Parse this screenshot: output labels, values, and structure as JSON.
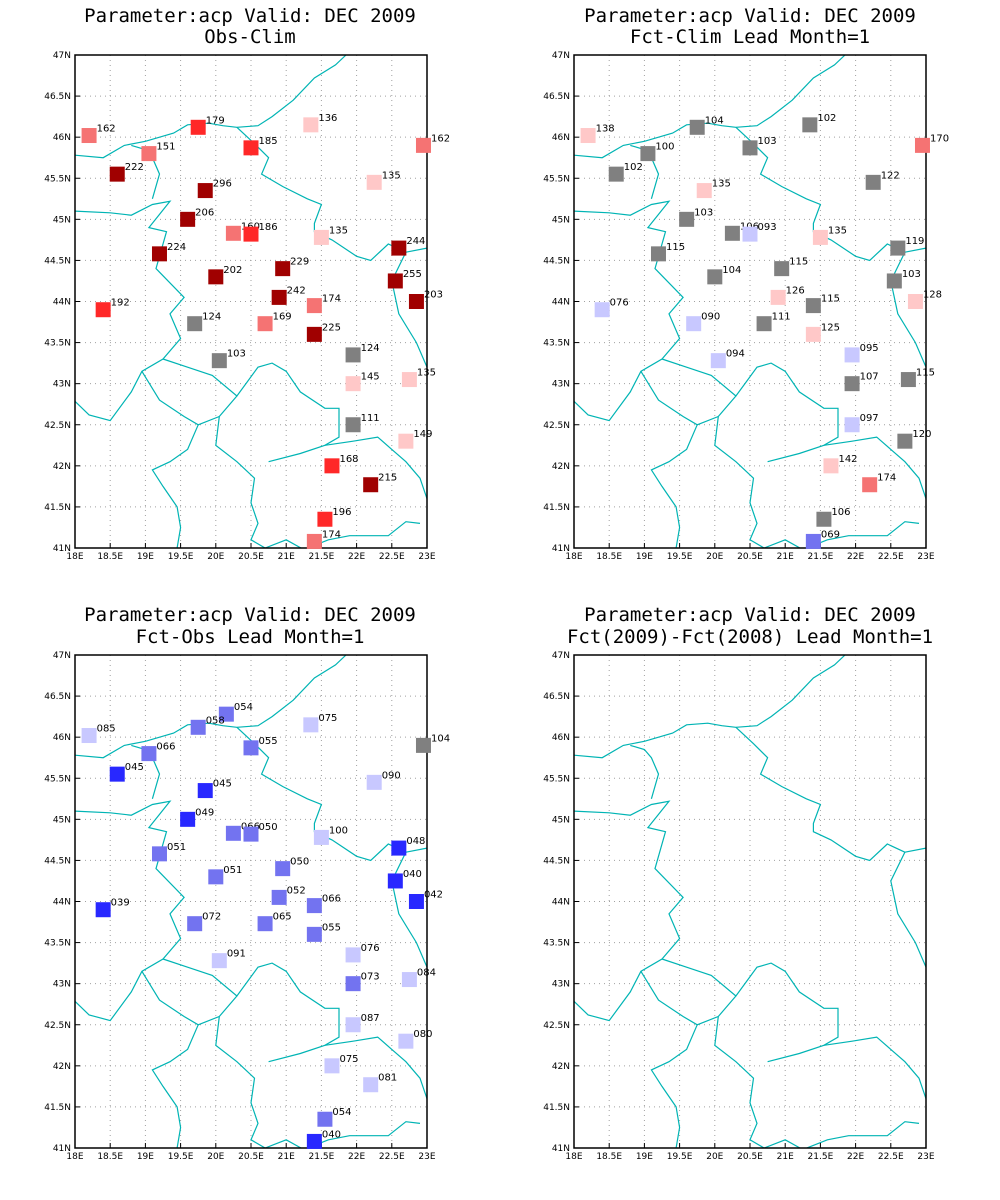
{
  "colors": {
    "coast": "#00b4b4",
    "grid": "#a0a0a0",
    "frame": "#000000",
    "neutral": "#808080",
    "darkred": "#a00000",
    "red": "#ff2828",
    "salmon": "#f57373",
    "pink": "#ffc8c8",
    "lightblue": "#c8c8ff",
    "medblue": "#7373f0",
    "blue": "#2828ff"
  },
  "axes": {
    "lon_range": [
      18,
      23
    ],
    "lat_range": [
      41,
      47
    ],
    "lon_ticks": [
      "18E",
      "18.5E",
      "19E",
      "19.5E",
      "20E",
      "20.5E",
      "21E",
      "21.5E",
      "22E",
      "22.5E",
      "23E"
    ],
    "lat_ticks": [
      "41N",
      "41.5N",
      "42N",
      "42.5N",
      "43N",
      "43.5N",
      "44N",
      "44.5N",
      "45N",
      "45.5N",
      "46N",
      "46.5N",
      "47N"
    ]
  },
  "panels": [
    {
      "title1": "Parameter:acp Valid: DEC 2009",
      "title2": "Obs-Clim",
      "stations": [
        {
          "lon": 18.2,
          "lat": 46.02,
          "label": "162",
          "c": "salmon"
        },
        {
          "lon": 19.05,
          "lat": 45.8,
          "label": "151",
          "c": "salmon"
        },
        {
          "lon": 19.75,
          "lat": 46.12,
          "label": "179",
          "c": "red"
        },
        {
          "lon": 20.5,
          "lat": 45.87,
          "label": "185",
          "c": "red"
        },
        {
          "lon": 21.35,
          "lat": 46.15,
          "label": "136",
          "c": "pink"
        },
        {
          "lon": 22.95,
          "lat": 45.9,
          "label": "162",
          "c": "salmon"
        },
        {
          "lon": 18.6,
          "lat": 45.55,
          "label": "222",
          "c": "darkred"
        },
        {
          "lon": 19.85,
          "lat": 45.35,
          "label": "296",
          "c": "darkred"
        },
        {
          "lon": 22.25,
          "lat": 45.45,
          "label": "135",
          "c": "pink"
        },
        {
          "lon": 19.6,
          "lat": 45.0,
          "label": "206",
          "c": "darkred"
        },
        {
          "lon": 20.25,
          "lat": 44.83,
          "label": "160",
          "c": "salmon"
        },
        {
          "lon": 20.5,
          "lat": 44.82,
          "label": "186",
          "c": "red"
        },
        {
          "lon": 21.5,
          "lat": 44.78,
          "label": "135",
          "c": "pink"
        },
        {
          "lon": 22.6,
          "lat": 44.65,
          "label": "244",
          "c": "darkred"
        },
        {
          "lon": 19.2,
          "lat": 44.58,
          "label": "224",
          "c": "darkred"
        },
        {
          "lon": 20.0,
          "lat": 44.3,
          "label": "202",
          "c": "darkred"
        },
        {
          "lon": 20.95,
          "lat": 44.4,
          "label": "229",
          "c": "darkred"
        },
        {
          "lon": 22.55,
          "lat": 44.25,
          "label": "255",
          "c": "darkred"
        },
        {
          "lon": 20.9,
          "lat": 44.05,
          "label": "242",
          "c": "darkred"
        },
        {
          "lon": 21.4,
          "lat": 43.95,
          "label": "174",
          "c": "salmon"
        },
        {
          "lon": 22.85,
          "lat": 44.0,
          "label": "203",
          "c": "darkred"
        },
        {
          "lon": 18.4,
          "lat": 43.9,
          "label": "192",
          "c": "red"
        },
        {
          "lon": 19.7,
          "lat": 43.73,
          "label": "124",
          "c": "neutral"
        },
        {
          "lon": 20.7,
          "lat": 43.73,
          "label": "169",
          "c": "salmon"
        },
        {
          "lon": 21.4,
          "lat": 43.6,
          "label": "225",
          "c": "darkred"
        },
        {
          "lon": 21.95,
          "lat": 43.35,
          "label": "124",
          "c": "neutral"
        },
        {
          "lon": 20.05,
          "lat": 43.28,
          "label": "103",
          "c": "neutral"
        },
        {
          "lon": 21.95,
          "lat": 43.0,
          "label": "145",
          "c": "pink"
        },
        {
          "lon": 22.75,
          "lat": 43.05,
          "label": "135",
          "c": "pink"
        },
        {
          "lon": 21.95,
          "lat": 42.5,
          "label": "111",
          "c": "neutral"
        },
        {
          "lon": 22.7,
          "lat": 42.3,
          "label": "149",
          "c": "pink"
        },
        {
          "lon": 21.65,
          "lat": 42.0,
          "label": "168",
          "c": "red"
        },
        {
          "lon": 22.2,
          "lat": 41.77,
          "label": "215",
          "c": "darkred"
        },
        {
          "lon": 21.55,
          "lat": 41.35,
          "label": "196",
          "c": "red"
        },
        {
          "lon": 21.4,
          "lat": 41.08,
          "label": "174",
          "c": "salmon"
        }
      ]
    },
    {
      "title1": "Parameter:acp Valid: DEC 2009",
      "title2": "Fct-Clim Lead Month=1",
      "stations": [
        {
          "lon": 18.2,
          "lat": 46.02,
          "label": "138",
          "c": "pink"
        },
        {
          "lon": 19.05,
          "lat": 45.8,
          "label": "100",
          "c": "neutral"
        },
        {
          "lon": 19.75,
          "lat": 46.12,
          "label": "104",
          "c": "neutral"
        },
        {
          "lon": 20.5,
          "lat": 45.87,
          "label": "103",
          "c": "neutral"
        },
        {
          "lon": 21.35,
          "lat": 46.15,
          "label": "102",
          "c": "neutral"
        },
        {
          "lon": 22.95,
          "lat": 45.9,
          "label": "170",
          "c": "salmon"
        },
        {
          "lon": 18.6,
          "lat": 45.55,
          "label": "102",
          "c": "neutral"
        },
        {
          "lon": 19.85,
          "lat": 45.35,
          "label": "135",
          "c": "pink"
        },
        {
          "lon": 22.25,
          "lat": 45.45,
          "label": "122",
          "c": "neutral"
        },
        {
          "lon": 19.6,
          "lat": 45.0,
          "label": "103",
          "c": "neutral"
        },
        {
          "lon": 20.25,
          "lat": 44.83,
          "label": "106",
          "c": "neutral"
        },
        {
          "lon": 20.5,
          "lat": 44.82,
          "label": "093",
          "c": "lightblue"
        },
        {
          "lon": 21.5,
          "lat": 44.78,
          "label": "135",
          "c": "pink"
        },
        {
          "lon": 22.6,
          "lat": 44.65,
          "label": "119",
          "c": "neutral"
        },
        {
          "lon": 19.2,
          "lat": 44.58,
          "label": "115",
          "c": "neutral"
        },
        {
          "lon": 20.0,
          "lat": 44.3,
          "label": "104",
          "c": "neutral"
        },
        {
          "lon": 20.95,
          "lat": 44.4,
          "label": "115",
          "c": "neutral"
        },
        {
          "lon": 22.55,
          "lat": 44.25,
          "label": "103",
          "c": "neutral"
        },
        {
          "lon": 20.9,
          "lat": 44.05,
          "label": "126",
          "c": "pink"
        },
        {
          "lon": 21.4,
          "lat": 43.95,
          "label": "115",
          "c": "neutral"
        },
        {
          "lon": 22.85,
          "lat": 44.0,
          "label": "128",
          "c": "pink"
        },
        {
          "lon": 18.4,
          "lat": 43.9,
          "label": "076",
          "c": "lightblue"
        },
        {
          "lon": 19.7,
          "lat": 43.73,
          "label": "090",
          "c": "lightblue"
        },
        {
          "lon": 20.7,
          "lat": 43.73,
          "label": "111",
          "c": "neutral"
        },
        {
          "lon": 21.4,
          "lat": 43.6,
          "label": "125",
          "c": "pink"
        },
        {
          "lon": 21.95,
          "lat": 43.35,
          "label": "095",
          "c": "lightblue"
        },
        {
          "lon": 20.05,
          "lat": 43.28,
          "label": "094",
          "c": "lightblue"
        },
        {
          "lon": 21.95,
          "lat": 43.0,
          "label": "107",
          "c": "neutral"
        },
        {
          "lon": 22.75,
          "lat": 43.05,
          "label": "115",
          "c": "neutral"
        },
        {
          "lon": 21.95,
          "lat": 42.5,
          "label": "097",
          "c": "lightblue"
        },
        {
          "lon": 22.7,
          "lat": 42.3,
          "label": "120",
          "c": "neutral"
        },
        {
          "lon": 21.65,
          "lat": 42.0,
          "label": "142",
          "c": "pink"
        },
        {
          "lon": 22.2,
          "lat": 41.77,
          "label": "174",
          "c": "salmon"
        },
        {
          "lon": 21.55,
          "lat": 41.35,
          "label": "106",
          "c": "neutral"
        },
        {
          "lon": 21.4,
          "lat": 41.08,
          "label": "069",
          "c": "medblue"
        }
      ]
    },
    {
      "title1": "Parameter:acp Valid: DEC 2009",
      "title2": "Fct-Obs Lead Month=1",
      "stations": [
        {
          "lon": 18.2,
          "lat": 46.02,
          "label": "085",
          "c": "lightblue"
        },
        {
          "lon": 19.05,
          "lat": 45.8,
          "label": "066",
          "c": "medblue"
        },
        {
          "lon": 20.15,
          "lat": 46.28,
          "label": "054",
          "c": "medblue"
        },
        {
          "lon": 19.75,
          "lat": 46.12,
          "label": "058",
          "c": "medblue"
        },
        {
          "lon": 20.5,
          "lat": 45.87,
          "label": "055",
          "c": "medblue"
        },
        {
          "lon": 21.35,
          "lat": 46.15,
          "label": "075",
          "c": "lightblue"
        },
        {
          "lon": 22.95,
          "lat": 45.9,
          "label": "104",
          "c": "neutral"
        },
        {
          "lon": 18.6,
          "lat": 45.55,
          "label": "045",
          "c": "blue"
        },
        {
          "lon": 19.85,
          "lat": 45.35,
          "label": "045",
          "c": "blue"
        },
        {
          "lon": 22.25,
          "lat": 45.45,
          "label": "090",
          "c": "lightblue"
        },
        {
          "lon": 19.6,
          "lat": 45.0,
          "label": "049",
          "c": "blue"
        },
        {
          "lon": 20.25,
          "lat": 44.83,
          "label": "066",
          "c": "medblue"
        },
        {
          "lon": 20.5,
          "lat": 44.82,
          "label": "050",
          "c": "medblue"
        },
        {
          "lon": 21.5,
          "lat": 44.78,
          "label": "100",
          "c": "lightblue"
        },
        {
          "lon": 22.6,
          "lat": 44.65,
          "label": "048",
          "c": "blue"
        },
        {
          "lon": 19.2,
          "lat": 44.58,
          "label": "051",
          "c": "medblue"
        },
        {
          "lon": 20.0,
          "lat": 44.3,
          "label": "051",
          "c": "medblue"
        },
        {
          "lon": 20.95,
          "lat": 44.4,
          "label": "050",
          "c": "medblue"
        },
        {
          "lon": 22.55,
          "lat": 44.25,
          "label": "040",
          "c": "blue"
        },
        {
          "lon": 20.9,
          "lat": 44.05,
          "label": "052",
          "c": "medblue"
        },
        {
          "lon": 21.4,
          "lat": 43.95,
          "label": "066",
          "c": "medblue"
        },
        {
          "lon": 22.85,
          "lat": 44.0,
          "label": "042",
          "c": "blue"
        },
        {
          "lon": 18.4,
          "lat": 43.9,
          "label": "039",
          "c": "blue"
        },
        {
          "lon": 19.7,
          "lat": 43.73,
          "label": "072",
          "c": "medblue"
        },
        {
          "lon": 20.7,
          "lat": 43.73,
          "label": "065",
          "c": "medblue"
        },
        {
          "lon": 21.4,
          "lat": 43.6,
          "label": "055",
          "c": "medblue"
        },
        {
          "lon": 21.95,
          "lat": 43.35,
          "label": "076",
          "c": "lightblue"
        },
        {
          "lon": 20.05,
          "lat": 43.28,
          "label": "091",
          "c": "lightblue"
        },
        {
          "lon": 21.95,
          "lat": 43.0,
          "label": "073",
          "c": "medblue"
        },
        {
          "lon": 22.75,
          "lat": 43.05,
          "label": "084",
          "c": "lightblue"
        },
        {
          "lon": 21.95,
          "lat": 42.5,
          "label": "087",
          "c": "lightblue"
        },
        {
          "lon": 22.7,
          "lat": 42.3,
          "label": "080",
          "c": "lightblue"
        },
        {
          "lon": 21.65,
          "lat": 42.0,
          "label": "075",
          "c": "lightblue"
        },
        {
          "lon": 22.2,
          "lat": 41.77,
          "label": "081",
          "c": "lightblue"
        },
        {
          "lon": 21.55,
          "lat": 41.35,
          "label": "054",
          "c": "medblue"
        },
        {
          "lon": 21.4,
          "lat": 41.08,
          "label": "040",
          "c": "blue"
        }
      ]
    },
    {
      "title1": "Parameter:acp Valid: DEC 2009",
      "title2": "Fct(2009)-Fct(2008) Lead Month=1",
      "stations": []
    }
  ],
  "boundaries": [
    [
      [
        18.0,
        45.78
      ],
      [
        18.4,
        45.75
      ],
      [
        18.7,
        45.9
      ],
      [
        19.0,
        45.95
      ],
      [
        19.4,
        46.05
      ],
      [
        19.6,
        46.15
      ],
      [
        19.9,
        46.17
      ],
      [
        20.1,
        46.14
      ],
      [
        20.3,
        46.12
      ],
      [
        20.6,
        46.14
      ],
      [
        20.8,
        46.25
      ],
      [
        21.1,
        46.45
      ],
      [
        21.4,
        46.72
      ],
      [
        21.7,
        46.88
      ],
      [
        21.85,
        47.0
      ]
    ],
    [
      [
        18.0,
        45.1
      ],
      [
        18.5,
        45.08
      ],
      [
        18.8,
        45.05
      ],
      [
        19.1,
        45.18
      ],
      [
        19.35,
        45.22
      ],
      [
        19.05,
        44.9
      ],
      [
        19.3,
        44.85
      ],
      [
        19.15,
        44.4
      ],
      [
        19.55,
        44.05
      ],
      [
        19.35,
        43.85
      ],
      [
        19.5,
        43.55
      ],
      [
        19.25,
        43.3
      ],
      [
        18.95,
        43.15
      ],
      [
        18.8,
        42.9
      ],
      [
        18.5,
        42.55
      ],
      [
        18.2,
        42.62
      ],
      [
        17.8,
        42.95
      ],
      [
        17.6,
        43.1
      ]
    ],
    [
      [
        18.8,
        45.9
      ],
      [
        19.0,
        45.85
      ],
      [
        19.1,
        45.75
      ],
      [
        19.2,
        45.55
      ],
      [
        19.1,
        45.25
      ]
    ],
    [
      [
        20.3,
        46.12
      ],
      [
        20.55,
        45.92
      ],
      [
        20.75,
        45.75
      ],
      [
        20.65,
        45.55
      ],
      [
        20.95,
        45.4
      ],
      [
        21.3,
        45.25
      ],
      [
        21.5,
        45.18
      ],
      [
        21.4,
        44.95
      ],
      [
        21.4,
        44.85
      ],
      [
        21.65,
        44.75
      ],
      [
        22.0,
        44.55
      ],
      [
        22.2,
        44.5
      ],
      [
        22.45,
        44.7
      ],
      [
        22.7,
        44.6
      ],
      [
        22.5,
        44.25
      ],
      [
        22.6,
        43.85
      ],
      [
        22.85,
        43.5
      ],
      [
        23.0,
        43.2
      ]
    ],
    [
      [
        22.7,
        44.6
      ],
      [
        23.0,
        44.65
      ]
    ],
    [
      [
        19.25,
        43.3
      ],
      [
        19.6,
        43.2
      ],
      [
        19.95,
        43.1
      ],
      [
        20.3,
        42.85
      ],
      [
        20.6,
        43.2
      ],
      [
        20.8,
        43.25
      ],
      [
        21.0,
        43.15
      ],
      [
        21.2,
        42.9
      ],
      [
        21.55,
        42.7
      ],
      [
        21.75,
        42.7
      ],
      [
        21.75,
        42.35
      ],
      [
        21.55,
        42.25
      ],
      [
        21.2,
        42.15
      ],
      [
        20.75,
        42.05
      ]
    ],
    [
      [
        20.3,
        42.85
      ],
      [
        20.05,
        42.6
      ],
      [
        20.0,
        42.25
      ],
      [
        20.3,
        42.05
      ],
      [
        20.55,
        41.85
      ],
      [
        20.5,
        41.55
      ],
      [
        20.6,
        41.3
      ],
      [
        20.5,
        41.1
      ],
      [
        20.7,
        41.0
      ]
    ],
    [
      [
        18.95,
        43.15
      ],
      [
        19.2,
        42.8
      ],
      [
        19.55,
        42.6
      ],
      [
        19.75,
        42.5
      ],
      [
        20.05,
        42.6
      ]
    ],
    [
      [
        19.75,
        42.5
      ],
      [
        19.6,
        42.2
      ],
      [
        19.35,
        42.05
      ],
      [
        19.1,
        41.95
      ],
      [
        19.25,
        41.75
      ],
      [
        19.45,
        41.5
      ],
      [
        19.5,
        41.25
      ],
      [
        19.45,
        41.0
      ]
    ],
    [
      [
        21.55,
        42.25
      ],
      [
        21.95,
        42.3
      ],
      [
        22.3,
        42.35
      ],
      [
        22.5,
        42.2
      ],
      [
        22.7,
        42.05
      ],
      [
        22.9,
        41.85
      ],
      [
        23.0,
        41.6
      ]
    ],
    [
      [
        20.7,
        41.0
      ],
      [
        21.0,
        41.1
      ],
      [
        21.25,
        40.98
      ],
      [
        21.6,
        41.1
      ],
      [
        21.9,
        41.15
      ],
      [
        22.2,
        41.15
      ],
      [
        22.45,
        41.15
      ],
      [
        22.7,
        41.32
      ],
      [
        22.9,
        41.3
      ]
    ]
  ]
}
